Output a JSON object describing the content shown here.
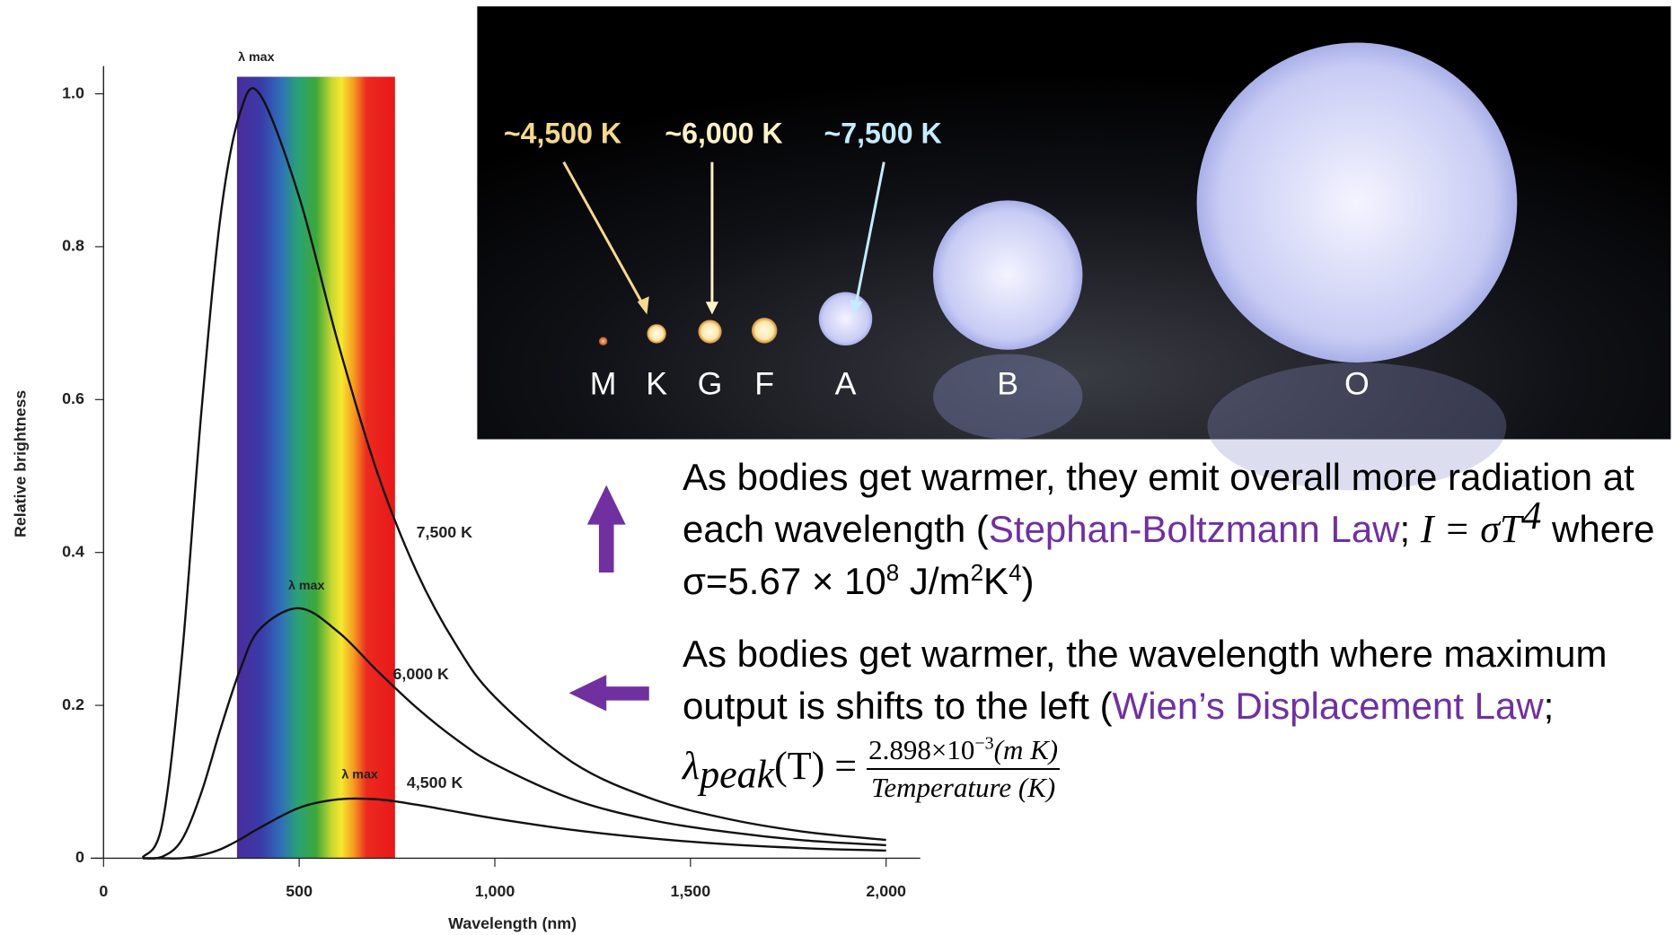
{
  "chart_data": {
    "type": "line",
    "xlabel": "Wavelength (nm)",
    "ylabel": "Relative brightness",
    "x": [
      100,
      150,
      200,
      250,
      300,
      350,
      400,
      500,
      600,
      700,
      800,
      900,
      1000,
      1200,
      1400,
      1600,
      1800,
      2000
    ],
    "series": [
      {
        "name": "7,500 K",
        "color": "#111111",
        "values": [
          0.001,
          0.045,
          0.262,
          0.584,
          0.844,
          0.977,
          0.999,
          0.865,
          0.673,
          0.504,
          0.375,
          0.28,
          0.211,
          0.125,
          0.078,
          0.051,
          0.034,
          0.024
        ]
      },
      {
        "name": "6,000 K",
        "color": "#111111",
        "values": [
          0,
          0.002,
          0.024,
          0.086,
          0.171,
          0.248,
          0.3,
          0.327,
          0.296,
          0.245,
          0.197,
          0.156,
          0.123,
          0.077,
          0.05,
          0.034,
          0.023,
          0.017
        ]
      },
      {
        "name": "4,500 K",
        "color": "#111111",
        "values": [
          0,
          0,
          0,
          0.004,
          0.012,
          0.025,
          0.04,
          0.066,
          0.077,
          0.077,
          0.07,
          0.061,
          0.052,
          0.037,
          0.026,
          0.018,
          0.013,
          0.01
        ]
      }
    ],
    "annotations": [
      "λ max",
      "λ max",
      "λ max"
    ],
    "xlim": [
      0,
      2000
    ],
    "ylim": [
      0,
      1
    ],
    "xticks": [
      0,
      500,
      {
        "value": 1000,
        "label": "1,000"
      },
      {
        "value": 1500,
        "label": "1,500"
      },
      {
        "value": 2000,
        "label": "2,000"
      }
    ],
    "yticks": [
      0,
      0.2,
      0.4,
      0.6,
      0.8,
      {
        "value": 1,
        "label": "1.0"
      }
    ],
    "grid": false
  },
  "stars": {
    "classes": [
      "M",
      "K",
      "G",
      "F",
      "A",
      "B",
      "O"
    ],
    "temperatures": [
      "~4,500 K",
      "~6,000 K",
      "~7,500 K"
    ]
  },
  "paragraph1": {
    "lead": "As bodies get warmer, they emit overall more radiation at each wavelength (",
    "law": "Stephan-Boltzmann Law",
    "sep": "; ",
    "formula": "I = σT",
    "formula_exp": "4",
    "rest": " where σ=5.67 × 10",
    "exp1": "8",
    "unit1": " J/m",
    "exp2": "2",
    "unit2": "K",
    "exp3": "4",
    "close": ")"
  },
  "paragraph2": {
    "lead": "As bodies get warmer, the wavelength where maximum output is shifts to the left (",
    "law": "Wien’s Displacement Law",
    "sep": "; ",
    "lhs": "λ",
    "lhs_sub": "peak",
    "lhs_rest": "(T) = ",
    "numerator": "2.898×10",
    "numerator_exp": "−3",
    "numerator_unit": "(m K)",
    "denominator": "Temperature (K)"
  }
}
